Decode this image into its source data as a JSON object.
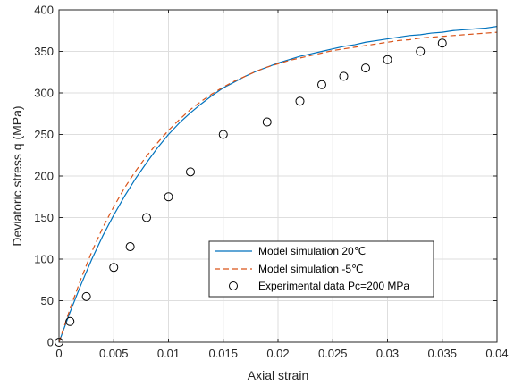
{
  "chart_data": {
    "type": "line",
    "title": "",
    "xlabel": "Axial strain",
    "ylabel": "Deviatoric stress q (MPa)",
    "xlim": [
      0,
      0.04
    ],
    "ylim": [
      0,
      400
    ],
    "xticks": [
      0,
      0.005,
      0.01,
      0.015,
      0.02,
      0.025,
      0.03,
      0.035,
      0.04
    ],
    "xtick_labels": [
      "0",
      "0.005",
      "0.01",
      "0.015",
      "0.02",
      "0.025",
      "0.03",
      "0.035",
      "0.04"
    ],
    "yticks": [
      0,
      50,
      100,
      150,
      200,
      250,
      300,
      350,
      400
    ],
    "ytick_labels": [
      "0",
      "50",
      "100",
      "150",
      "200",
      "250",
      "300",
      "350",
      "400"
    ],
    "grid": true,
    "legend_position": "bottom-right",
    "series": [
      {
        "name": "Model simulation 20℃",
        "style": "solid",
        "color": "#0072BD",
        "x": [
          0,
          0.001,
          0.002,
          0.003,
          0.004,
          0.005,
          0.006,
          0.007,
          0.008,
          0.009,
          0.01,
          0.011,
          0.012,
          0.013,
          0.014,
          0.015,
          0.016,
          0.017,
          0.018,
          0.019,
          0.02,
          0.021,
          0.022,
          0.023,
          0.024,
          0.025,
          0.026,
          0.027,
          0.028,
          0.029,
          0.03,
          0.031,
          0.032,
          0.033,
          0.034,
          0.035,
          0.036,
          0.037,
          0.038,
          0.039,
          0.04
        ],
        "y": [
          0,
          36,
          69,
          100,
          128,
          153,
          176,
          197,
          216,
          234,
          250,
          264,
          276,
          287,
          297,
          306,
          313,
          320,
          326,
          331,
          336,
          340,
          344,
          347,
          350,
          353,
          356,
          358,
          361,
          363,
          365,
          367,
          369,
          370,
          372,
          373,
          375,
          376,
          377,
          378,
          380
        ]
      },
      {
        "name": "Model simulation -5℃",
        "style": "dashed",
        "color": "#D95319",
        "x": [
          0,
          0.001,
          0.002,
          0.003,
          0.004,
          0.005,
          0.006,
          0.007,
          0.008,
          0.009,
          0.01,
          0.011,
          0.012,
          0.013,
          0.014,
          0.015,
          0.016,
          0.017,
          0.018,
          0.019,
          0.02,
          0.021,
          0.022,
          0.023,
          0.024,
          0.025,
          0.026,
          0.027,
          0.028,
          0.029,
          0.03,
          0.031,
          0.032,
          0.033,
          0.034,
          0.035,
          0.036,
          0.037,
          0.038,
          0.039,
          0.04
        ],
        "y": [
          0,
          40,
          76,
          109,
          138,
          163,
          186,
          206,
          224,
          240,
          255,
          268,
          280,
          290,
          299,
          307,
          314,
          320,
          326,
          331,
          335,
          339,
          342,
          345,
          348,
          351,
          353,
          355,
          357,
          359,
          361,
          363,
          364,
          366,
          367,
          368,
          369,
          370,
          371,
          372,
          373
        ]
      },
      {
        "name": "Experimental data Pc=200 MPa",
        "style": "markers",
        "marker": "circle",
        "color": "#000000",
        "x": [
          0,
          0.001,
          0.0025,
          0.005,
          0.0065,
          0.008,
          0.01,
          0.012,
          0.015,
          0.019,
          0.022,
          0.024,
          0.026,
          0.028,
          0.03,
          0.033,
          0.035
        ],
        "y": [
          0,
          25,
          55,
          90,
          115,
          150,
          175,
          205,
          250,
          265,
          290,
          310,
          320,
          330,
          340,
          350,
          360
        ]
      }
    ]
  }
}
